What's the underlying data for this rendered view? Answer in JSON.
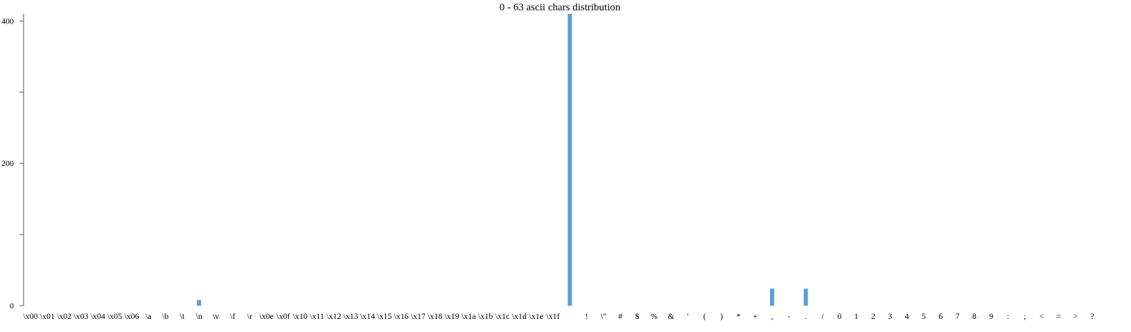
{
  "chart_data": {
    "type": "bar",
    "title": "0 - 63 ascii chars distribution",
    "xlabel": "",
    "ylabel": "",
    "ylim": [
      0,
      410
    ],
    "yticks": [
      0,
      200,
      400
    ],
    "y_tick_labels": [
      "0",
      "200",
      "400"
    ],
    "grid": false,
    "bar_color": "#5b9fd4",
    "categories": [
      "\\x00",
      "\\x01",
      "\\x02",
      "\\x03",
      "\\x04",
      "\\x05",
      "\\x06",
      "\\a",
      "\\b",
      "\\t",
      "\\n",
      "\\v",
      "\\f",
      "\\r",
      "\\x0e",
      "\\x0f",
      "\\x10",
      "\\x11",
      "\\x12",
      "\\x13",
      "\\x14",
      "\\x15",
      "\\x16",
      "\\x17",
      "\\x18",
      "\\x19",
      "\\x1a",
      "\\x1b",
      "\\x1c",
      "\\x1d",
      "\\x1e",
      "\\x1f",
      " ",
      "!",
      "\\\"",
      "#",
      "$",
      "%",
      "&",
      "'",
      "(",
      ")",
      "*",
      "+",
      ",",
      "-",
      ".",
      "/",
      "0",
      "1",
      "2",
      "3",
      "4",
      "5",
      "6",
      "7",
      "8",
      "9",
      ":",
      ";",
      "<",
      "=",
      ">",
      "?"
    ],
    "values": [
      0,
      0,
      0,
      0,
      0,
      0,
      0,
      0,
      0,
      0,
      8,
      0,
      0,
      0,
      0,
      0,
      0,
      0,
      0,
      0,
      0,
      0,
      0,
      0,
      0,
      0,
      0,
      0,
      0,
      0,
      0,
      0,
      410,
      0,
      0,
      0,
      0,
      0,
      0,
      0,
      0,
      0,
      0,
      0,
      24,
      0,
      24,
      0,
      0,
      0,
      0,
      0,
      0,
      0,
      0,
      0,
      0,
      0,
      0,
      0,
      0,
      0,
      0,
      0
    ]
  }
}
